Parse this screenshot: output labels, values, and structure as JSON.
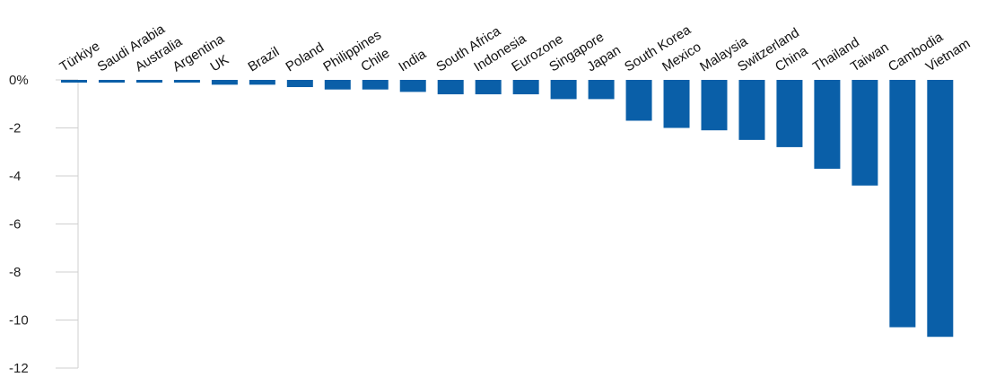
{
  "chart_data": {
    "type": "bar",
    "title": "",
    "xlabel": "",
    "ylabel": "",
    "ylim": [
      -12,
      0
    ],
    "yticks": [
      0,
      -2,
      -4,
      -6,
      -8,
      -10,
      -12
    ],
    "ytick_labels": [
      "0%",
      "-2",
      "-4",
      "-6",
      "-8",
      "-10",
      "-12"
    ],
    "grid": false,
    "bar_color": "#0a5fa8",
    "categories": [
      "Türkiye",
      "Saudi Arabia",
      "Australia",
      "Argentina",
      "UK",
      "Brazil",
      "Poland",
      "Philippines",
      "Chile",
      "India",
      "South Africa",
      "Indonesia",
      "Eurozone",
      "Singapore",
      "Japan",
      "South Korea",
      "Mexico",
      "Malaysia",
      "Switzerland",
      "China",
      "Thailand",
      "Taiwan",
      "Cambodia",
      "Vietnam"
    ],
    "values": [
      -0.1,
      -0.1,
      -0.1,
      -0.1,
      -0.2,
      -0.2,
      -0.3,
      -0.4,
      -0.4,
      -0.5,
      -0.6,
      -0.6,
      -0.6,
      -0.8,
      -0.8,
      -1.7,
      -2.0,
      -2.1,
      -2.5,
      -2.8,
      -3.7,
      -4.4,
      -10.3,
      -10.7
    ]
  }
}
